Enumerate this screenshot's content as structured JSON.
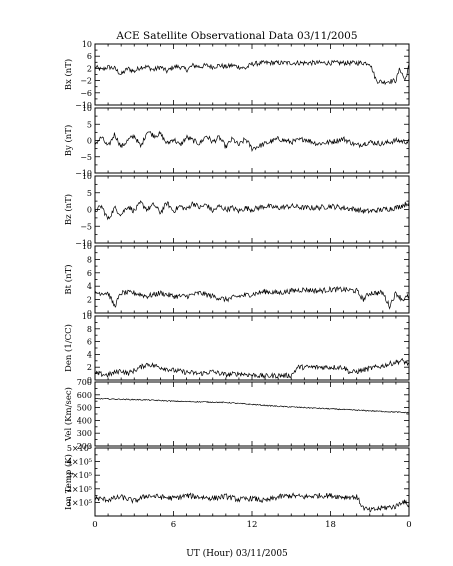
{
  "chart_data": [
    {
      "type": "line",
      "ylabel": "Bx (nT)",
      "ylim": [
        -10,
        10
      ],
      "yticks": [
        "10",
        "6",
        "2",
        "−2",
        "−6",
        "−10"
      ],
      "yticks_values": [
        10,
        6,
        2,
        -2,
        -6,
        -10
      ],
      "xlim": [
        0,
        24
      ],
      "series": [
        {
          "x": [
            0,
            0.5,
            1,
            1.5,
            2,
            2.5,
            3,
            3.5,
            4,
            4.5,
            5,
            5.5,
            6,
            6.5,
            7,
            7.5,
            8,
            8.5,
            9,
            9.5,
            10,
            10.5,
            11,
            11.5,
            12,
            13,
            14,
            15,
            16,
            17,
            18,
            19,
            20,
            21,
            21.5,
            22,
            22.5,
            23,
            23.3,
            23.7,
            24
          ],
          "y": [
            2.5,
            1.5,
            2.5,
            2,
            0,
            2,
            1,
            2.5,
            2.5,
            1.5,
            2.5,
            1,
            2.5,
            2.5,
            1.5,
            3,
            2.5,
            3,
            2.5,
            3,
            2.5,
            3,
            2.5,
            2,
            3.5,
            3.8,
            3.8,
            3.8,
            3.8,
            3.8,
            3.8,
            3.8,
            3.8,
            3.8,
            -2,
            -2.5,
            -2.2,
            -2,
            2,
            -2,
            3
          ]
        }
      ]
    },
    {
      "type": "line",
      "ylabel": "By (nT)",
      "ylim": [
        -10,
        10
      ],
      "yticks": [
        "10",
        "5",
        "0",
        "−5",
        "−10"
      ],
      "yticks_values": [
        10,
        5,
        0,
        -5,
        -10
      ],
      "xlim": [
        0,
        24
      ],
      "series": [
        {
          "x": [
            0,
            0.5,
            1,
            1.5,
            2,
            2.5,
            3,
            3.5,
            4,
            4.5,
            5,
            5.5,
            6,
            6.5,
            7,
            7.5,
            8,
            8.5,
            9,
            9.5,
            10,
            10.5,
            11,
            11.5,
            12,
            13,
            14,
            15,
            16,
            17,
            18,
            19,
            20,
            21,
            22,
            23,
            24
          ],
          "y": [
            -1,
            1,
            -2,
            2,
            -2,
            0,
            1.5,
            -2,
            3,
            1.5,
            2,
            -1,
            0.5,
            -1.5,
            1,
            0,
            -1,
            1.5,
            -0.5,
            1,
            -2,
            0.5,
            -1.5,
            0.5,
            -2.5,
            -1,
            0.5,
            -0.5,
            0.5,
            -1,
            -0.5,
            0.5,
            -1.5,
            -0.5,
            -1,
            0,
            -0.5
          ]
        }
      ]
    },
    {
      "type": "line",
      "ylabel": "Bz (nT)",
      "ylim": [
        -10,
        10
      ],
      "yticks": [
        "10",
        "5",
        "0",
        "−5",
        "−10"
      ],
      "yticks_values": [
        10,
        5,
        0,
        -5,
        -10
      ],
      "xlim": [
        0,
        24
      ],
      "series": [
        {
          "x": [
            0,
            0.5,
            1,
            1.5,
            2,
            2.5,
            3,
            3.5,
            4,
            4.5,
            5,
            5.5,
            6,
            6.5,
            7,
            7.5,
            8,
            8.5,
            9,
            9.5,
            10,
            10.5,
            11,
            11.5,
            12,
            13,
            14,
            15,
            16,
            17,
            18,
            19,
            20,
            20.5,
            21,
            22,
            23,
            24
          ],
          "y": [
            -0.5,
            1,
            -3,
            0.5,
            -1.5,
            1,
            -0.5,
            2,
            0,
            1.5,
            -1,
            2,
            -0.5,
            1,
            0,
            2,
            0.5,
            1.5,
            -0.5,
            1,
            0,
            0.5,
            -0.5,
            0.5,
            0,
            1,
            0.5,
            1,
            0.5,
            0.5,
            1,
            0.5,
            0,
            -0.5,
            -0.5,
            0,
            0.5,
            2
          ]
        }
      ]
    },
    {
      "type": "line",
      "ylabel": "Bt (nT)",
      "ylim": [
        0,
        10
      ],
      "yticks": [
        "10",
        "8",
        "6",
        "4",
        "2",
        "0"
      ],
      "yticks_values": [
        10,
        8,
        6,
        4,
        2,
        0
      ],
      "xlim": [
        0,
        24
      ],
      "series": [
        {
          "x": [
            0,
            1,
            1.5,
            2,
            3,
            4,
            5,
            6,
            7,
            8,
            9,
            10,
            11,
            12,
            13,
            14,
            15,
            16,
            17,
            18,
            19,
            20,
            20.5,
            21,
            22,
            22.5,
            23,
            23.5,
            24
          ],
          "y": [
            3,
            3,
            1,
            3,
            3,
            2.5,
            3,
            2.5,
            2.5,
            3,
            2.5,
            2,
            2.5,
            2.8,
            3.2,
            3,
            3.3,
            3.5,
            3.3,
            3.5,
            3.5,
            3.3,
            2,
            3,
            3,
            1,
            3,
            2,
            2.5
          ]
        }
      ]
    },
    {
      "type": "line",
      "ylabel": "Den (1/CC)",
      "ylim": [
        0,
        10
      ],
      "yticks": [
        "10",
        "8",
        "6",
        "4",
        "2",
        "0"
      ],
      "yticks_values": [
        10,
        8,
        6,
        4,
        2,
        0
      ],
      "xlim": [
        0,
        24
      ],
      "series": [
        {
          "x": [
            0,
            1,
            2,
            2.5,
            3,
            4,
            5,
            6,
            7,
            8,
            9,
            10,
            11,
            12,
            13,
            14,
            15,
            15.5,
            16,
            17,
            18,
            19,
            19.5,
            20,
            21,
            22,
            23,
            23.5,
            24
          ],
          "y": [
            1,
            0.8,
            1.5,
            1,
            1.5,
            2.5,
            2,
            1.5,
            1.2,
            1,
            1.3,
            0.8,
            1,
            0.8,
            0.6,
            0.7,
            0.7,
            2,
            2,
            2,
            2,
            2,
            1.2,
            1.3,
            1.8,
            2.2,
            2.8,
            3,
            2.5
          ]
        }
      ]
    },
    {
      "type": "line",
      "ylabel": "Vel (Km/sec)",
      "ylim": [
        200,
        700
      ],
      "yticks": [
        "700",
        "600",
        "500",
        "400",
        "300",
        "200"
      ],
      "yticks_values": [
        700,
        600,
        500,
        400,
        300,
        200
      ],
      "xlim": [
        0,
        24
      ],
      "series": [
        {
          "x": [
            0,
            2,
            4,
            6,
            8,
            10,
            12,
            14,
            16,
            18,
            20,
            22,
            24
          ],
          "y": [
            570,
            565,
            560,
            550,
            545,
            540,
            525,
            510,
            500,
            490,
            480,
            470,
            460
          ]
        }
      ]
    },
    {
      "type": "line",
      "ylabel": "Ion Temp (K)",
      "ylim": [
        0,
        500000
      ],
      "yticks": [
        "5×10⁵",
        "4×10⁵",
        "3×10⁵",
        "2×10⁵",
        "1×10⁵"
      ],
      "yticks_values": [
        500000,
        400000,
        300000,
        200000,
        100000
      ],
      "xlim": [
        0,
        24
      ],
      "series": [
        {
          "x": [
            0,
            1,
            2,
            3,
            4,
            5,
            6,
            7,
            8,
            9,
            10,
            11,
            12,
            13,
            14,
            15,
            16,
            17,
            18,
            19,
            20,
            20.5,
            21,
            22,
            23,
            23.5,
            24
          ],
          "y": [
            130000,
            120000,
            140000,
            110000,
            150000,
            140000,
            130000,
            150000,
            140000,
            130000,
            145000,
            120000,
            130000,
            110000,
            140000,
            150000,
            140000,
            150000,
            150000,
            140000,
            140000,
            60000,
            40000,
            60000,
            70000,
            110000,
            80000
          ]
        }
      ]
    }
  ],
  "title": "ACE Satellite Observational Data   03/11/2005",
  "xaxis": {
    "label": "UT (Hour)   03/11/2005",
    "ticks": [
      "0",
      "6",
      "12",
      "18",
      "0"
    ],
    "tick_values": [
      0,
      6,
      12,
      18,
      24
    ]
  }
}
